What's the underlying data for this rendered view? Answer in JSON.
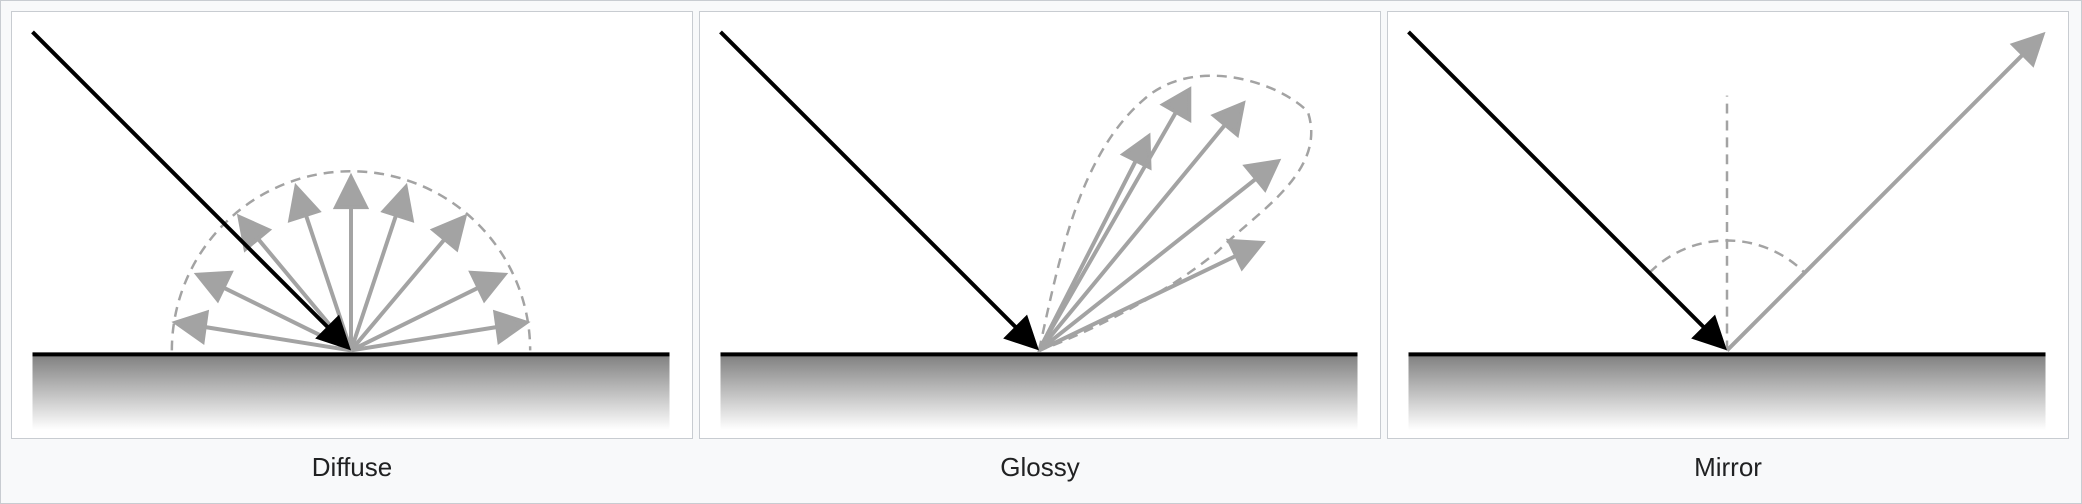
{
  "captions": {
    "diffuse": "Diffuse",
    "glossy": "Glossy",
    "mirror": "Mirror"
  },
  "colors": {
    "incident_ray": "#000000",
    "reflected_ray": "#a3a3a3",
    "guide_dash": "#a3a3a3",
    "surface_line": "#000000",
    "surface_shade_top": "#7f7f7f",
    "surface_shade_bottom": "#ffffff",
    "panel_bg": "#ffffff",
    "page_bg": "#f8f9fa",
    "border": "#c8ccd1"
  }
}
